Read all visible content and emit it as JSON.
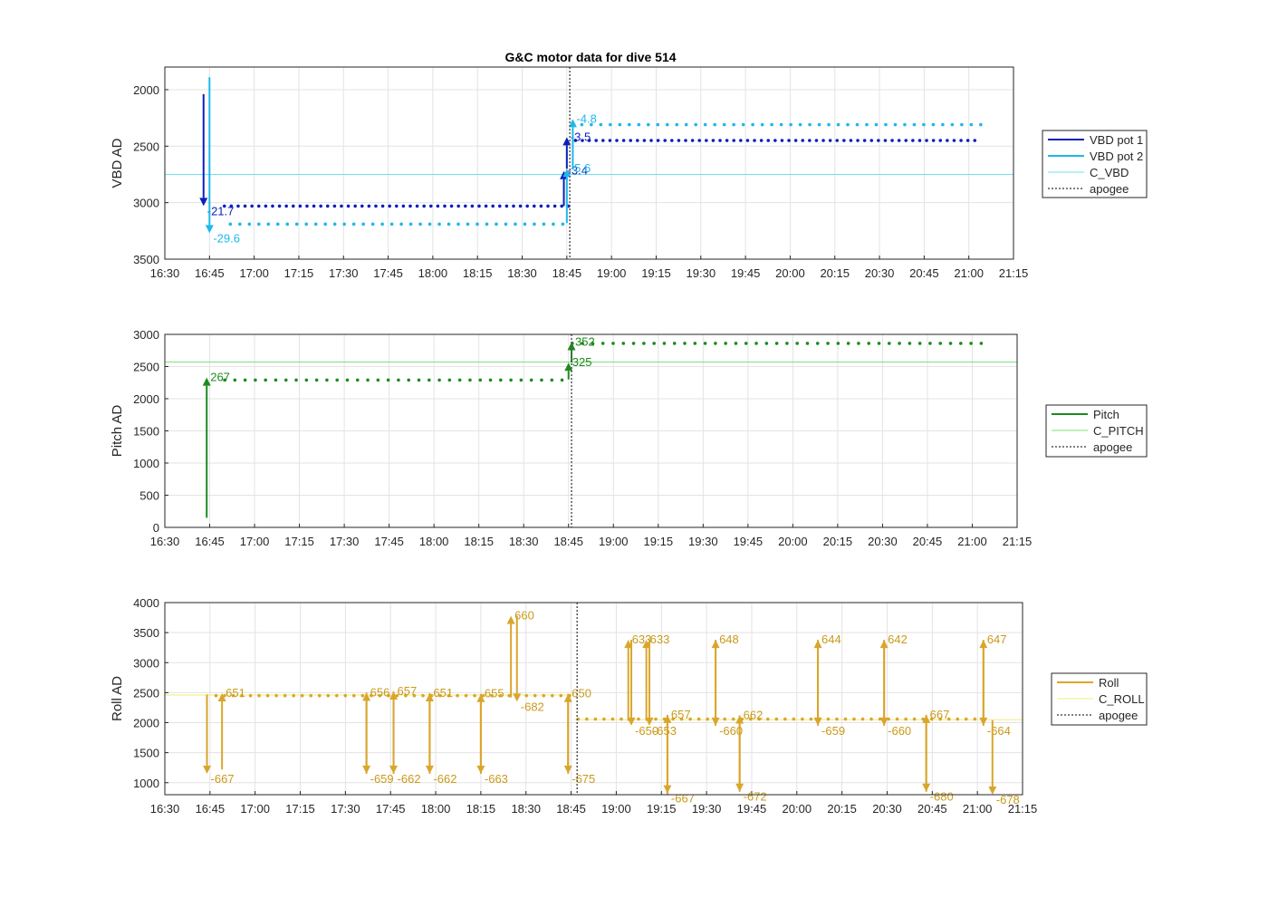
{
  "colors": {
    "vbd1": "#0a1fbd",
    "vbd2": "#1fb8ea",
    "c_vbd": "#6fe0ee",
    "pitch": "#1e8a1e",
    "c_pitch": "#7fe07f",
    "roll": "#d9a62c",
    "c_roll": "#f2ec7a",
    "apogee": "#555555"
  },
  "chart_data": [
    {
      "type": "scatter",
      "title": "G&C motor data for dive 514",
      "xlabel": "",
      "ylabel": "VBD AD",
      "xlim": [
        "16:30",
        "21:15"
      ],
      "ylim": [
        3500,
        1800
      ],
      "y_reversed": true,
      "xticks": [
        "16:30",
        "16:45",
        "17:00",
        "17:15",
        "17:30",
        "17:45",
        "18:00",
        "18:15",
        "18:30",
        "18:45",
        "19:00",
        "19:15",
        "19:30",
        "19:45",
        "20:00",
        "20:15",
        "20:30",
        "20:45",
        "21:00",
        "21:15"
      ],
      "yticks": [
        "2000",
        "2500",
        "3000",
        "3500"
      ],
      "grid": true,
      "legend_position": "right",
      "legend": [
        "VBD pot 1",
        "VBD pot 2",
        "C_VBD",
        "apogee"
      ],
      "reference_line": {
        "name": "C_VBD",
        "y": 2750
      },
      "apogee": "18:46",
      "series": [
        {
          "name": "VBD pot 1",
          "x_start": "16:50",
          "x_end": "21:02",
          "points": 110,
          "y_before": 3030,
          "y_after": 2450,
          "switch": "18:46"
        },
        {
          "name": "VBD pot 2",
          "x_start": "16:52",
          "x_end": "21:04",
          "points": 80,
          "y_before": 3190,
          "y_after": 2310,
          "switch": "18:46"
        }
      ],
      "arrows": [
        {
          "series": "VBD pot 1",
          "x": "16:43",
          "from": 2040,
          "to": 3030,
          "label": "-21.7"
        },
        {
          "series": "VBD pot 2",
          "x": "16:45",
          "from": 1890,
          "to": 3270,
          "label": "-29.6"
        },
        {
          "series": "VBD pot 1",
          "x": "18:44",
          "from": 3030,
          "to": 2720,
          "label": "-3.4"
        },
        {
          "series": "VBD pot 1",
          "x": "18:45",
          "from": 2700,
          "to": 2420,
          "label": "-3.5"
        },
        {
          "series": "VBD pot 2",
          "x": "18:45",
          "from": 3180,
          "to": 2700,
          "label": "-5.6"
        },
        {
          "series": "VBD pot 2",
          "x": "18:47",
          "from": 2700,
          "to": 2260,
          "label": "-4.8"
        }
      ]
    },
    {
      "type": "scatter",
      "title": "",
      "xlabel": "",
      "ylabel": "Pitch AD",
      "xlim": [
        "16:30",
        "21:15"
      ],
      "ylim": [
        0,
        3000
      ],
      "xticks": [
        "16:30",
        "16:45",
        "17:00",
        "17:15",
        "17:30",
        "17:45",
        "18:00",
        "18:15",
        "18:30",
        "18:45",
        "19:00",
        "19:15",
        "19:30",
        "19:45",
        "20:00",
        "20:15",
        "20:30",
        "20:45",
        "21:00",
        "21:15"
      ],
      "yticks": [
        "0",
        "500",
        "1000",
        "1500",
        "2000",
        "2500",
        "3000"
      ],
      "grid": true,
      "legend_position": "right",
      "legend": [
        "Pitch",
        "C_PITCH",
        "apogee"
      ],
      "reference_line": {
        "name": "C_PITCH",
        "y": 2570
      },
      "apogee": "18:46",
      "series": [
        {
          "name": "Pitch",
          "x_start": "16:50",
          "x_end": "21:03",
          "points": 75,
          "y_before": 2290,
          "y_after": 2860,
          "switch": "18:46"
        }
      ],
      "arrows": [
        {
          "series": "Pitch",
          "x": "16:44",
          "from": 150,
          "to": 2330,
          "label": "267"
        },
        {
          "series": "Pitch",
          "x": "18:45",
          "from": 2300,
          "to": 2560,
          "label": "325"
        },
        {
          "series": "Pitch",
          "x": "18:46",
          "from": 2560,
          "to": 2880,
          "label": "352"
        }
      ]
    },
    {
      "type": "scatter",
      "title": "",
      "xlabel": "",
      "ylabel": "Roll AD",
      "xlim": [
        "16:30",
        "21:15"
      ],
      "ylim": [
        800,
        4000
      ],
      "xticks": [
        "16:30",
        "16:45",
        "17:00",
        "17:15",
        "17:30",
        "17:45",
        "18:00",
        "18:15",
        "18:30",
        "18:45",
        "19:00",
        "19:15",
        "19:30",
        "19:45",
        "20:00",
        "20:15",
        "20:30",
        "20:45",
        "21:00",
        "21:15"
      ],
      "yticks": [
        "1000",
        "1500",
        "2000",
        "2500",
        "3000",
        "3500",
        "4000"
      ],
      "grid": true,
      "legend_position": "right",
      "legend": [
        "Roll",
        "C_ROLL",
        "apogee"
      ],
      "reference_line": {
        "name": "C_ROLL",
        "y_before": 2460,
        "y_after": 2050,
        "switch": "18:46"
      },
      "apogee": "18:47",
      "series": [
        {
          "name": "Roll",
          "x_start": "16:47",
          "x_end": "21:02",
          "points": 90,
          "y_before": 2450,
          "y_after": 2060,
          "switch": "18:46"
        }
      ],
      "arrows": [
        {
          "x": "16:44",
          "from": 2470,
          "to": 1150,
          "label": "-667"
        },
        {
          "x": "16:49",
          "from": 1220,
          "to": 2490,
          "label": "651"
        },
        {
          "x": "17:37",
          "from": 1150,
          "to": 2500,
          "label": "656"
        },
        {
          "x": "17:37",
          "from": 2500,
          "to": 1150,
          "label": "-659"
        },
        {
          "x": "17:46",
          "from": 1150,
          "to": 2520,
          "label": "657"
        },
        {
          "x": "17:46",
          "from": 2520,
          "to": 1150,
          "label": "-662"
        },
        {
          "x": "17:58",
          "from": 1150,
          "to": 2490,
          "label": "651"
        },
        {
          "x": "17:58",
          "from": 2490,
          "to": 1150,
          "label": "-662"
        },
        {
          "x": "18:15",
          "from": 1150,
          "to": 2480,
          "label": "655"
        },
        {
          "x": "18:15",
          "from": 2480,
          "to": 1150,
          "label": "-663"
        },
        {
          "x": "18:25",
          "from": 2420,
          "to": 3780,
          "label": "660"
        },
        {
          "x": "18:27",
          "from": 3780,
          "to": 2350,
          "label": "-682"
        },
        {
          "x": "18:44",
          "from": 1150,
          "to": 2480,
          "label": "650"
        },
        {
          "x": "18:44",
          "from": 2480,
          "to": 1150,
          "label": "-675"
        },
        {
          "x": "19:04",
          "from": 2030,
          "to": 3380,
          "label": "633"
        },
        {
          "x": "19:05",
          "from": 3380,
          "to": 1950,
          "label": "-650"
        },
        {
          "x": "19:10",
          "from": 2030,
          "to": 3380,
          "label": "633"
        },
        {
          "x": "19:11",
          "from": 3380,
          "to": 1950,
          "label": "-653"
        },
        {
          "x": "19:17",
          "from": 800,
          "to": 2130,
          "label": "657"
        },
        {
          "x": "19:17",
          "from": 2130,
          "to": 820,
          "label": "-667"
        },
        {
          "x": "19:33",
          "from": 1950,
          "to": 3380,
          "label": "648"
        },
        {
          "x": "19:33",
          "from": 3380,
          "to": 1950,
          "label": "-660"
        },
        {
          "x": "19:41",
          "from": 850,
          "to": 2120,
          "label": "662"
        },
        {
          "x": "19:41",
          "from": 2120,
          "to": 850,
          "label": "-672"
        },
        {
          "x": "20:07",
          "from": 1950,
          "to": 3380,
          "label": "644"
        },
        {
          "x": "20:07",
          "from": 3380,
          "to": 1950,
          "label": "-659"
        },
        {
          "x": "20:29",
          "from": 1950,
          "to": 3380,
          "label": "642"
        },
        {
          "x": "20:29",
          "from": 3380,
          "to": 1950,
          "label": "-660"
        },
        {
          "x": "20:43",
          "from": 850,
          "to": 2130,
          "label": "667"
        },
        {
          "x": "20:43",
          "from": 2130,
          "to": 850,
          "label": "-680"
        },
        {
          "x": "21:02",
          "from": 1950,
          "to": 3380,
          "label": "647"
        },
        {
          "x": "21:02",
          "from": 3380,
          "to": 1950,
          "label": "-664"
        },
        {
          "x": "21:05",
          "from": 2040,
          "to": 800,
          "label": "-678"
        }
      ]
    }
  ]
}
